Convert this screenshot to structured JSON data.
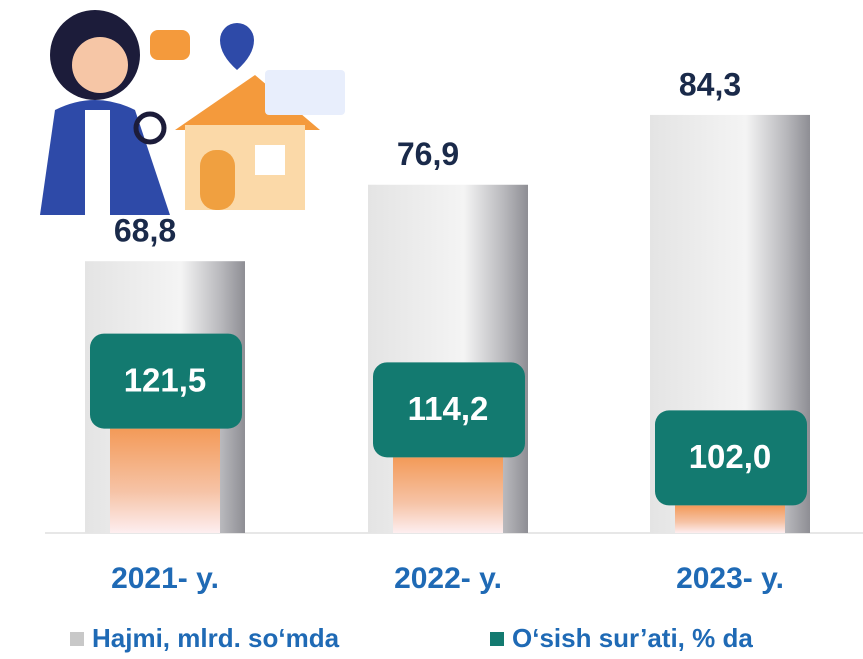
{
  "chart_data": {
    "type": "bar",
    "categories": [
      "2021- y.",
      "2022- y.",
      "2023- y."
    ],
    "series": [
      {
        "name": "Hajmi, mlrd. so‘mda",
        "color": "#c8c8c8",
        "values": [
          68.8,
          76.9,
          84.3
        ],
        "value_labels": [
          "68,8",
          "76,9",
          "84,3"
        ]
      },
      {
        "name": "O‘sish sur’ati, % da",
        "color": "#137a70",
        "values": [
          121.5,
          114.2,
          102.0
        ],
        "value_labels": [
          "121,5",
          "114,2",
          "102,0"
        ],
        "axis": "y2"
      }
    ],
    "ylim": [
      40,
      88
    ],
    "y2lim": [
      95,
      210
    ]
  }
}
